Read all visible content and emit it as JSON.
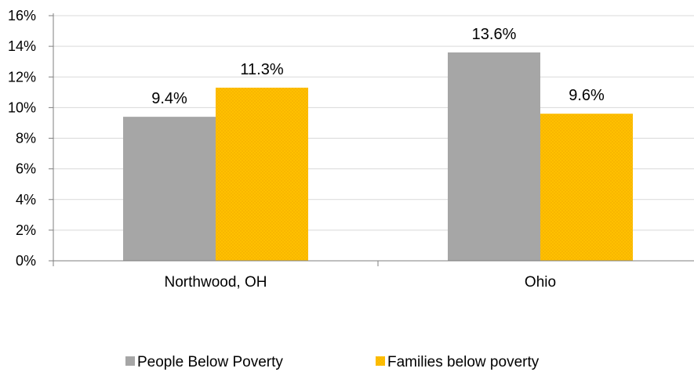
{
  "chart_data": {
    "type": "bar",
    "categories": [
      "Northwood, OH",
      "Ohio"
    ],
    "series": [
      {
        "name": "People Below Poverty",
        "values": [
          9.4,
          13.6
        ],
        "labels": [
          "9.4%",
          "13.6%"
        ],
        "color": "#a6a6a6"
      },
      {
        "name": "Families below poverty",
        "values": [
          11.3,
          9.6
        ],
        "labels": [
          "11.3%",
          "9.6%"
        ],
        "color": "#ffc000"
      }
    ],
    "ylim": [
      0,
      16
    ],
    "yticks": [
      0,
      2,
      4,
      6,
      8,
      10,
      12,
      14,
      16
    ],
    "ytick_labels": [
      "0%",
      "2%",
      "4%",
      "6%",
      "8%",
      "10%",
      "12%",
      "14%",
      "16%"
    ],
    "grid": true,
    "legend_position": "bottom"
  }
}
